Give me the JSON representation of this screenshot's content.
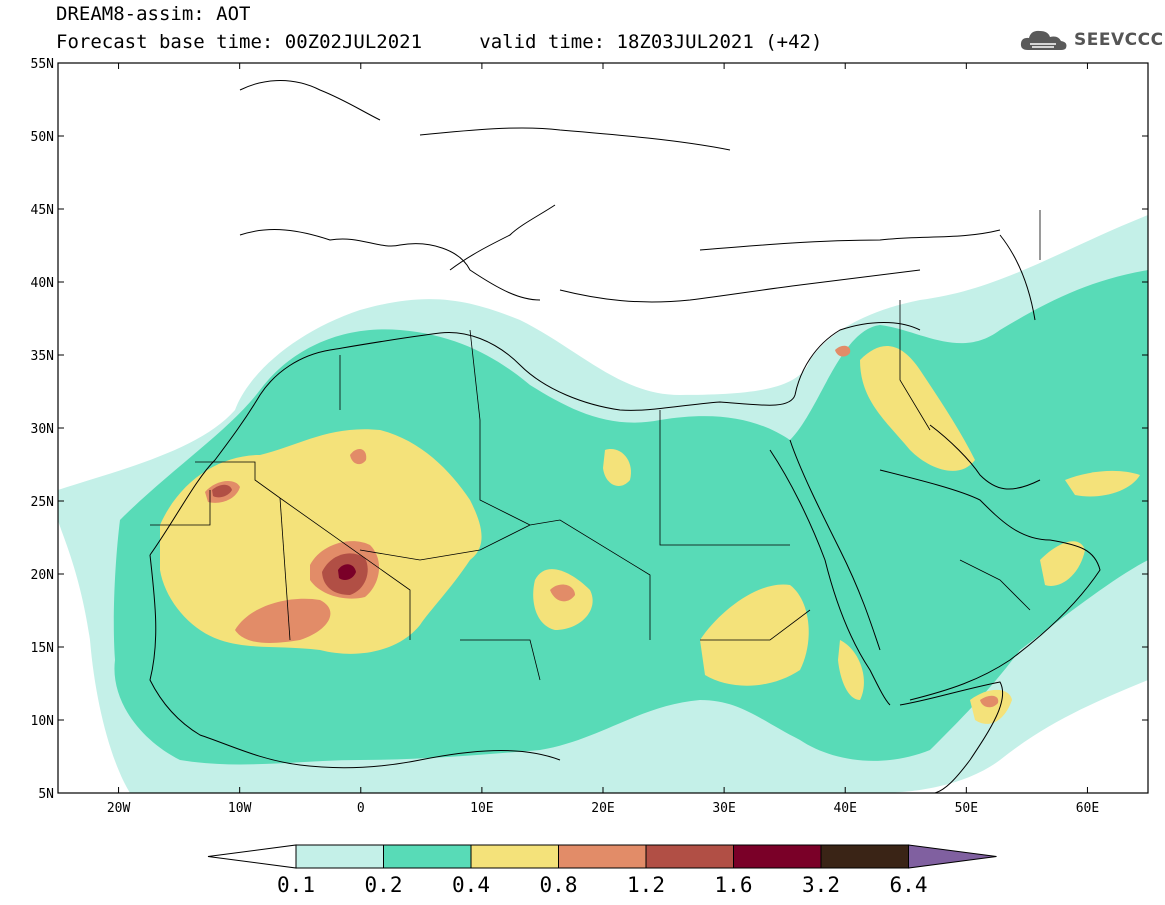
{
  "header": {
    "title": "DREAM8-assim: AOT",
    "base_time_label": "Forecast base time: 00Z02JUL2021",
    "valid_time_label": "valid time: 18Z03JUL2021 (+42)"
  },
  "logo": {
    "text": "SEEVCCC",
    "icon": "cloud-icon"
  },
  "map": {
    "lat_labels": [
      "55N",
      "50N",
      "45N",
      "40N",
      "35N",
      "30N",
      "25N",
      "20N",
      "15N",
      "10N",
      "5N"
    ],
    "lon_labels": [
      "20W",
      "10W",
      "0",
      "10E",
      "20E",
      "30E",
      "40E",
      "50E",
      "60E"
    ],
    "lat_values": [
      55,
      50,
      45,
      40,
      35,
      30,
      25,
      20,
      15,
      10,
      5
    ],
    "lon_values": [
      -20,
      -10,
      0,
      10,
      20,
      30,
      40,
      50,
      60
    ],
    "lon_range": [
      -25,
      65
    ],
    "lat_range": [
      5,
      55
    ]
  },
  "colorbar": {
    "labels": [
      "0.1",
      "0.2",
      "0.4",
      "0.8",
      "1.2",
      "1.6",
      "3.2",
      "6.4"
    ],
    "colors": [
      "#ffffff",
      "#c4f0e8",
      "#58dbb7",
      "#f4e27a",
      "#e28c68",
      "#b14f45",
      "#7a0028",
      "#3a2416",
      "#8060a0"
    ],
    "thresholds": [
      0.1,
      0.2,
      0.4,
      0.8,
      1.2,
      1.6,
      3.2,
      6.4
    ]
  }
}
